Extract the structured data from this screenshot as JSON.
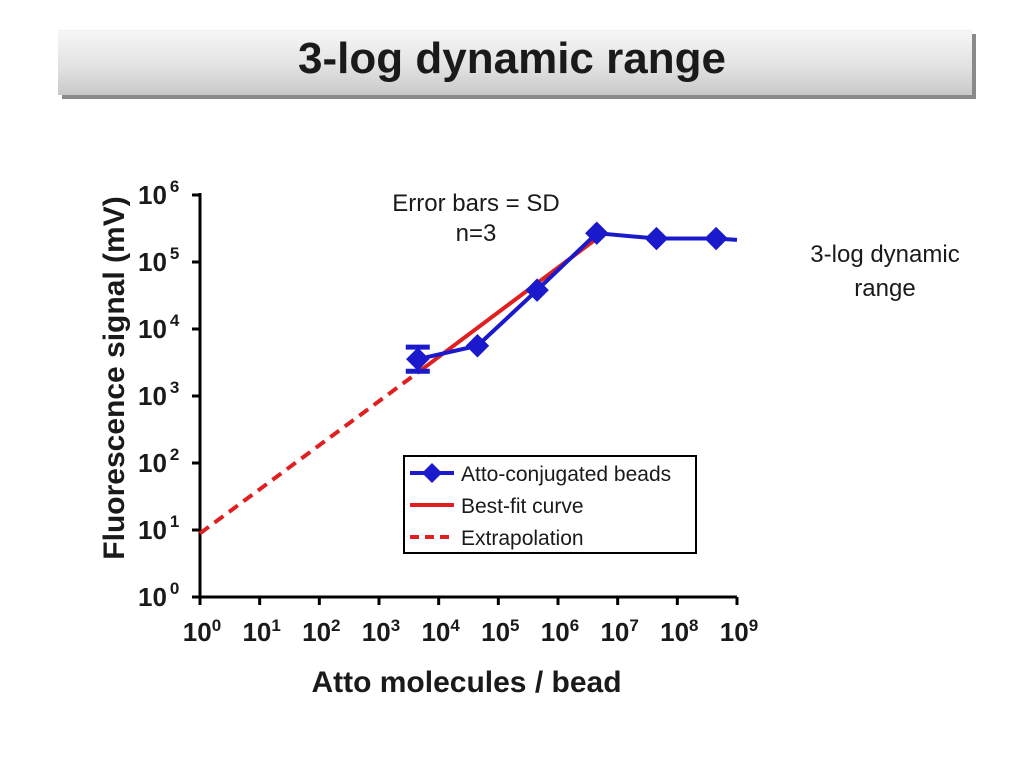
{
  "slide": {
    "corner_mark": "- -",
    "title": "3-log dynamic range",
    "side_note": "3-log dynamic\nrange"
  },
  "colors": {
    "series": "#1a1acc",
    "fit": "#e02020",
    "axis": "#000000"
  },
  "chart_data": {
    "type": "line",
    "title": "",
    "xlabel": "Atto molecules / bead",
    "ylabel": "Fluorescence signal (mV)",
    "x_scale": "log",
    "y_scale": "log",
    "xlim_exp": [
      0,
      9
    ],
    "ylim_exp": [
      0,
      6
    ],
    "x_ticks": [
      {
        "base": "10",
        "exp": "0"
      },
      {
        "base": "10",
        "exp": "1"
      },
      {
        "base": "10",
        "exp": "2"
      },
      {
        "base": "10",
        "exp": "3"
      },
      {
        "base": "10",
        "exp": "4"
      },
      {
        "base": "10",
        "exp": "5"
      },
      {
        "base": "10",
        "exp": "6"
      },
      {
        "base": "10",
        "exp": "7"
      },
      {
        "base": "10",
        "exp": "8"
      },
      {
        "base": "10",
        "exp": "9"
      }
    ],
    "y_ticks": [
      {
        "base": "10",
        "exp": "0"
      },
      {
        "base": "10",
        "exp": "1"
      },
      {
        "base": "10",
        "exp": "2"
      },
      {
        "base": "10",
        "exp": "3"
      },
      {
        "base": "10",
        "exp": "4"
      },
      {
        "base": "10",
        "exp": "5"
      },
      {
        "base": "10",
        "exp": "6"
      }
    ],
    "annotation": "Error bars = SD\nn=3",
    "series": [
      {
        "name": "Atto-conjugated beads",
        "style": "line-diamond",
        "x_log": [
          3.65,
          4.65,
          5.65,
          6.65,
          7.65,
          8.65
        ],
        "y_log": [
          3.55,
          3.75,
          4.58,
          5.43,
          5.35,
          5.35
        ],
        "y_err_log": [
          0.18,
          0,
          0,
          0,
          0,
          0
        ],
        "tail_to_x_log": 9.0,
        "tail_y_log": 5.33
      },
      {
        "name": "Best-fit curve",
        "style": "solid",
        "x_log": [
          3.65,
          6.65
        ],
        "y_log": [
          3.35,
          5.35
        ]
      },
      {
        "name": "Extrapolation",
        "style": "dashed",
        "x_log": [
          0.0,
          3.65
        ],
        "y_log": [
          0.95,
          3.35
        ]
      }
    ],
    "legend": "lower-right"
  }
}
